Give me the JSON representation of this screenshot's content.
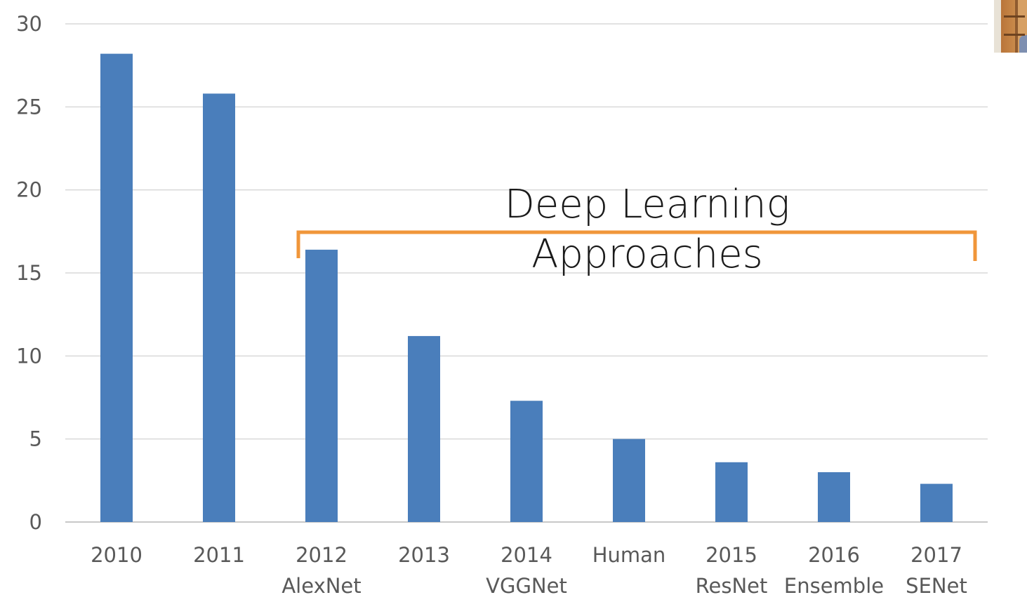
{
  "chart_data": {
    "type": "bar",
    "categories": [
      [
        "2010"
      ],
      [
        "2011"
      ],
      [
        "2012",
        "AlexNet"
      ],
      [
        "2013"
      ],
      [
        "2014",
        "VGGNet"
      ],
      [
        "Human"
      ],
      [
        "2015",
        "ResNet"
      ],
      [
        "2016",
        "Ensemble"
      ],
      [
        "2017",
        "SENet"
      ]
    ],
    "values": [
      28.2,
      25.8,
      16.4,
      11.2,
      7.3,
      5.0,
      3.6,
      3.0,
      2.3
    ],
    "yticks": [
      0,
      5,
      10,
      15,
      20,
      25,
      30
    ],
    "ylim": [
      0,
      30
    ],
    "grid": true,
    "bar_color": "#4a7ebb",
    "title": "",
    "xlabel": "",
    "ylabel": "",
    "annotation": {
      "lines": [
        "Deep Learning",
        "Approaches"
      ],
      "bracket_color": "#f0963a",
      "spans_categories": [
        "2012 AlexNet",
        "2017 SENet"
      ]
    }
  },
  "colors": {
    "gridline": "#d9d9d9",
    "axis_text": "#595959",
    "bar": "#4a7ebb",
    "bracket": "#f0963a"
  },
  "overlay": {
    "presenter_thumbnail": true
  }
}
